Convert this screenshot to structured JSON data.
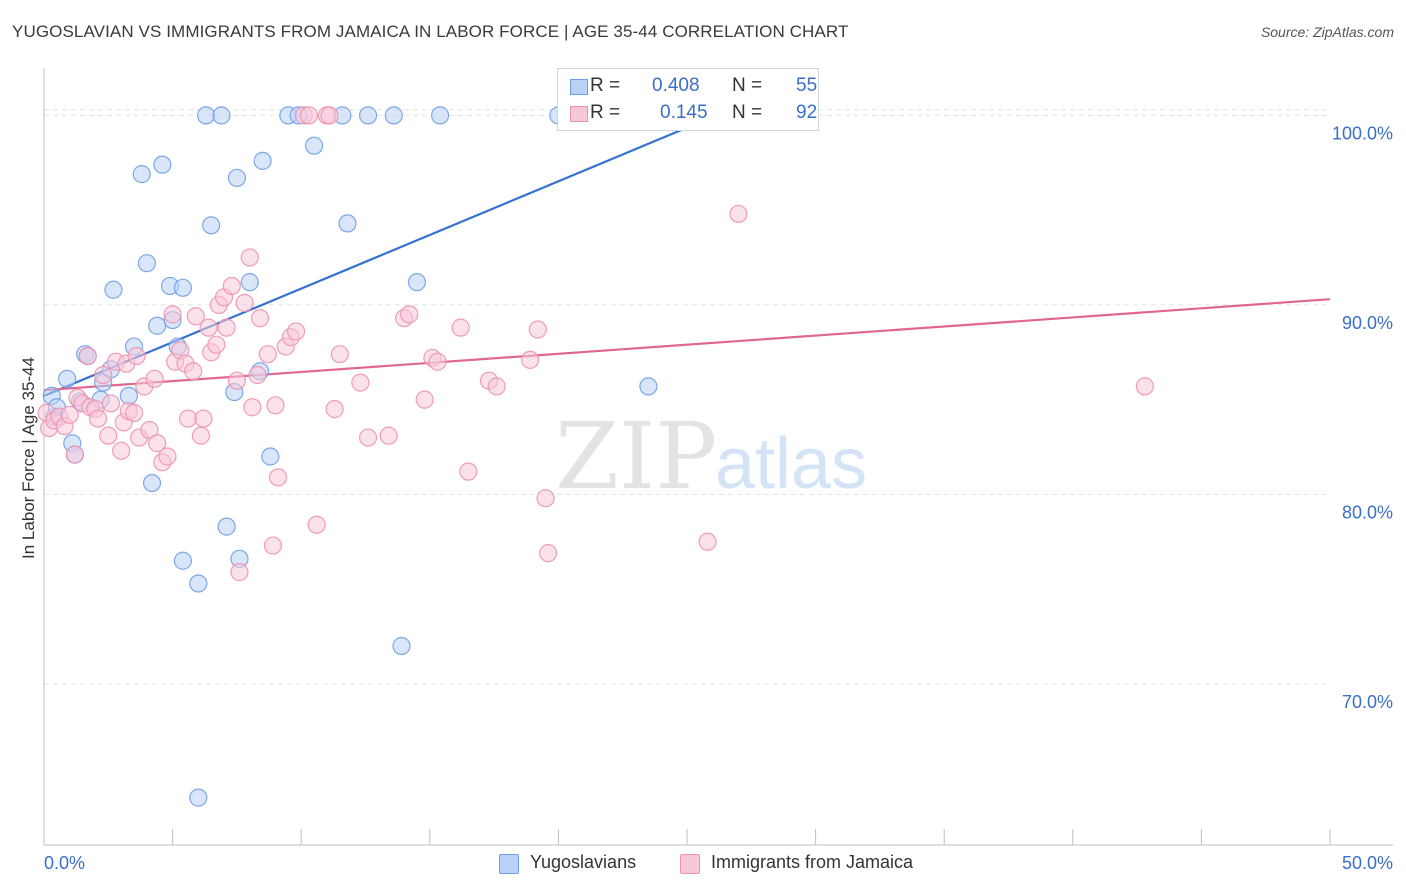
{
  "header": {
    "title": "YUGOSLAVIAN VS IMMIGRANTS FROM JAMAICA IN LABOR FORCE | AGE 35-44 CORRELATION CHART",
    "source": "Source: ZipAtlas.com"
  },
  "watermark": {
    "zip": "ZIP",
    "atlas": "atlas"
  },
  "legend": {
    "series1": {
      "r_label": "R =",
      "r_value": "0.408",
      "n_label": "N =",
      "n_value": "55"
    },
    "series2": {
      "r_label": "R =",
      "r_value": "0.145",
      "n_label": "N =",
      "n_value": "92"
    }
  },
  "bottom_legend": {
    "series1": "Yugoslavians",
    "series2": "Immigrants from Jamaica"
  },
  "chart_data": {
    "type": "scatter",
    "title": "YUGOSLAVIAN VS IMMIGRANTS FROM JAMAICA IN LABOR FORCE | AGE 35-44 CORRELATION CHART",
    "xlabel": "",
    "ylabel": "In Labor Force | Age 35-44",
    "xlim": [
      0,
      50
    ],
    "ylim": [
      61.5,
      102.5
    ],
    "x_tick_labels": [
      "0.0%",
      "50.0%"
    ],
    "y_ticks": [
      70,
      80,
      90,
      100
    ],
    "y_tick_labels": [
      "70.0%",
      "80.0%",
      "90.0%",
      "100.0%"
    ],
    "grid": true,
    "colors": {
      "series1": "#6f9ee6",
      "series1_fill": "#b9d2f5",
      "series1_line": "#3572cf",
      "series2": "#ee92b0",
      "series2_fill": "#f8c8d8",
      "series2_line": "#e0688f",
      "tick_label": "#3a6fc9"
    },
    "series": [
      {
        "name": "Yugoslavians",
        "R": 0.408,
        "N": 55,
        "trend": {
          "x": [
            0,
            26.5
          ],
          "y": [
            85.2,
            100.2
          ]
        },
        "points": [
          [
            0.3,
            85.2
          ],
          [
            0.4,
            84.1
          ],
          [
            0.5,
            84.6
          ],
          [
            0.9,
            86.1
          ],
          [
            1.1,
            82.7
          ],
          [
            1.2,
            82.1
          ],
          [
            1.4,
            84.9
          ],
          [
            1.6,
            87.4
          ],
          [
            1.7,
            87.3
          ],
          [
            2.2,
            85.0
          ],
          [
            2.3,
            85.9
          ],
          [
            2.6,
            86.6
          ],
          [
            2.7,
            90.8
          ],
          [
            3.3,
            85.2
          ],
          [
            3.5,
            87.8
          ],
          [
            3.8,
            96.9
          ],
          [
            4.0,
            92.2
          ],
          [
            4.2,
            80.6
          ],
          [
            4.4,
            88.9
          ],
          [
            4.6,
            97.4
          ],
          [
            4.9,
            91.0
          ],
          [
            5.0,
            89.2
          ],
          [
            5.2,
            87.8
          ],
          [
            5.4,
            90.9
          ],
          [
            5.4,
            76.5
          ],
          [
            6.0,
            64.0
          ],
          [
            6.0,
            75.3
          ],
          [
            6.3,
            100.0
          ],
          [
            6.5,
            94.2
          ],
          [
            6.9,
            100.0
          ],
          [
            7.1,
            78.3
          ],
          [
            7.4,
            85.4
          ],
          [
            7.5,
            96.7
          ],
          [
            7.6,
            76.6
          ],
          [
            8.0,
            91.2
          ],
          [
            8.4,
            86.5
          ],
          [
            8.5,
            97.6
          ],
          [
            8.8,
            82.0
          ],
          [
            9.5,
            100.0
          ],
          [
            9.9,
            100.0
          ],
          [
            10.5,
            98.4
          ],
          [
            11.6,
            100.0
          ],
          [
            11.8,
            94.3
          ],
          [
            12.6,
            100.0
          ],
          [
            13.6,
            100.0
          ],
          [
            13.9,
            72.0
          ],
          [
            14.5,
            91.2
          ],
          [
            15.4,
            100.0
          ],
          [
            20.0,
            100.0
          ],
          [
            23.5,
            85.7
          ]
        ]
      },
      {
        "name": "Immigrants from Jamaica",
        "R": 0.145,
        "N": 92,
        "trend": {
          "x": [
            0,
            50
          ],
          "y": [
            85.5,
            90.3
          ]
        },
        "points": [
          [
            0.1,
            84.3
          ],
          [
            0.2,
            83.5
          ],
          [
            0.4,
            83.9
          ],
          [
            0.6,
            84.1
          ],
          [
            0.8,
            83.6
          ],
          [
            1.0,
            84.2
          ],
          [
            1.2,
            82.1
          ],
          [
            1.3,
            85.1
          ],
          [
            1.5,
            84.8
          ],
          [
            1.7,
            87.3
          ],
          [
            1.8,
            84.6
          ],
          [
            2.0,
            84.5
          ],
          [
            2.1,
            84.0
          ],
          [
            2.3,
            86.3
          ],
          [
            2.5,
            83.1
          ],
          [
            2.6,
            84.8
          ],
          [
            2.8,
            87.0
          ],
          [
            3.0,
            82.3
          ],
          [
            3.1,
            83.8
          ],
          [
            3.2,
            86.9
          ],
          [
            3.3,
            84.4
          ],
          [
            3.5,
            84.3
          ],
          [
            3.6,
            87.3
          ],
          [
            3.7,
            83.0
          ],
          [
            3.9,
            85.7
          ],
          [
            4.1,
            83.4
          ],
          [
            4.3,
            86.1
          ],
          [
            4.4,
            82.7
          ],
          [
            4.6,
            81.7
          ],
          [
            4.8,
            82.0
          ],
          [
            5.0,
            89.5
          ],
          [
            5.1,
            87.0
          ],
          [
            5.3,
            87.6
          ],
          [
            5.5,
            86.9
          ],
          [
            5.6,
            84.0
          ],
          [
            5.8,
            86.5
          ],
          [
            5.9,
            89.4
          ],
          [
            6.1,
            83.1
          ],
          [
            6.2,
            84.0
          ],
          [
            6.4,
            88.8
          ],
          [
            6.5,
            87.5
          ],
          [
            6.7,
            87.9
          ],
          [
            6.8,
            90.0
          ],
          [
            7.0,
            90.4
          ],
          [
            7.1,
            88.8
          ],
          [
            7.3,
            91.0
          ],
          [
            7.5,
            86.0
          ],
          [
            7.6,
            75.9
          ],
          [
            7.8,
            90.1
          ],
          [
            8.0,
            92.5
          ],
          [
            8.1,
            84.6
          ],
          [
            8.3,
            86.3
          ],
          [
            8.4,
            89.3
          ],
          [
            8.7,
            87.4
          ],
          [
            8.9,
            77.3
          ],
          [
            9.0,
            84.7
          ],
          [
            9.1,
            80.9
          ],
          [
            9.4,
            87.8
          ],
          [
            9.6,
            88.3
          ],
          [
            9.8,
            88.6
          ],
          [
            10.1,
            100.0
          ],
          [
            10.3,
            100.0
          ],
          [
            10.6,
            78.4
          ],
          [
            11.0,
            100.0
          ],
          [
            11.1,
            100.0
          ],
          [
            11.3,
            84.5
          ],
          [
            11.5,
            87.4
          ],
          [
            12.3,
            85.9
          ],
          [
            12.6,
            83.0
          ],
          [
            13.4,
            83.1
          ],
          [
            14.0,
            89.3
          ],
          [
            14.2,
            89.5
          ],
          [
            14.8,
            85.0
          ],
          [
            15.1,
            87.2
          ],
          [
            15.3,
            87.0
          ],
          [
            16.2,
            88.8
          ],
          [
            16.5,
            81.2
          ],
          [
            17.3,
            86.0
          ],
          [
            17.6,
            85.7
          ],
          [
            18.9,
            87.1
          ],
          [
            19.2,
            88.7
          ],
          [
            19.5,
            79.8
          ],
          [
            19.6,
            76.9
          ],
          [
            20.5,
            100.0
          ],
          [
            25.8,
            77.5
          ],
          [
            27.0,
            94.8
          ],
          [
            42.8,
            85.7
          ]
        ]
      }
    ]
  }
}
